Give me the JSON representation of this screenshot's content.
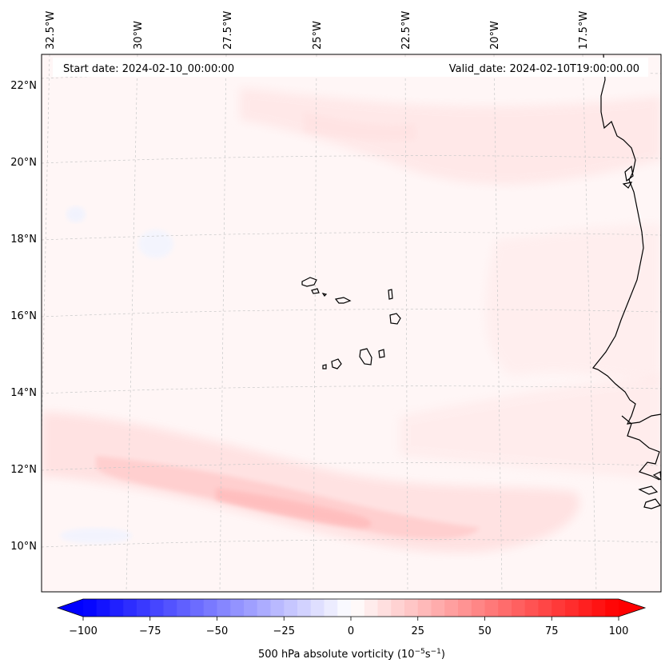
{
  "header": {
    "start_date": "Start date: 2024-02-10_00:00:00",
    "valid_date": "Valid_date: 2024-02-10T19:00:00.00"
  },
  "map": {
    "top_axis": {
      "lon_labels": [
        "32.5°W",
        "30°W",
        "27.5°W",
        "25°W",
        "22.5°W",
        "20°W",
        "17.5°W"
      ]
    },
    "left_axis": {
      "lat_labels": [
        "22°N",
        "20°N",
        "18°N",
        "16°N",
        "14°N",
        "12°N",
        "10°N"
      ]
    },
    "features": [
      "Cape Verde islands",
      "West African coastline"
    ]
  },
  "colorbar": {
    "label": "500 hPa absolute vorticity (10⁻⁵s⁻¹)",
    "label_base": "500 hPa absolute vorticity (10",
    "label_exp1": "−5",
    "label_mid": "s",
    "label_exp2": "−1",
    "label_end": ")",
    "ticks": [
      "−100",
      "−75",
      "−50",
      "−25",
      "0",
      "25",
      "50",
      "75",
      "100"
    ],
    "min": -100,
    "max": 100,
    "negative_color": "#0000ff",
    "positive_color": "#ff0000",
    "center_color": "#ffffff"
  }
}
